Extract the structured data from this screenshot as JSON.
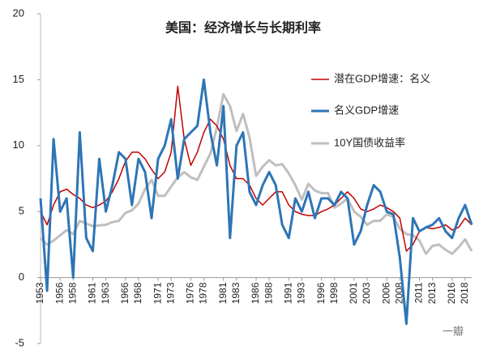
{
  "chart_data": {
    "type": "line",
    "title": "美国：经济增长与长期利率",
    "watermark": "一瓣",
    "x": [
      1953,
      1954,
      1955,
      1956,
      1957,
      1958,
      1959,
      1960,
      1961,
      1962,
      1963,
      1964,
      1965,
      1966,
      1967,
      1968,
      1969,
      1970,
      1971,
      1972,
      1973,
      1974,
      1975,
      1976,
      1977,
      1978,
      1979,
      1980,
      1981,
      1982,
      1983,
      1984,
      1985,
      1986,
      1987,
      1988,
      1989,
      1990,
      1991,
      1992,
      1993,
      1994,
      1995,
      1996,
      1997,
      1998,
      1999,
      2000,
      2001,
      2002,
      2003,
      2004,
      2005,
      2006,
      2007,
      2008,
      2009,
      2010,
      2011,
      2012,
      2013,
      2014,
      2015,
      2016,
      2017,
      2018,
      2019
    ],
    "series": [
      {
        "name": "潜在GDP增速：名义",
        "color": "#c00000",
        "width": 1.5,
        "values": [
          5,
          4,
          5.5,
          6.5,
          6.7,
          6.3,
          6,
          5.5,
          5.3,
          5.5,
          5.8,
          6.5,
          7.5,
          8.8,
          9.5,
          9.5,
          9,
          8.2,
          7.5,
          8,
          9.5,
          14.5,
          10.5,
          8.5,
          9.5,
          11,
          12,
          11.5,
          10.5,
          8.5,
          7.5,
          7.5,
          7,
          6,
          5.5,
          6,
          6.5,
          6.5,
          5.5,
          5,
          4.8,
          4.7,
          4.7,
          5,
          5.2,
          5.5,
          6,
          6.5,
          6,
          5.2,
          5,
          5.2,
          5.5,
          5.3,
          5,
          4.5,
          2,
          2.5,
          3.5,
          3.8,
          3.7,
          3.8,
          4,
          3.6,
          3.8,
          4.5,
          4
        ]
      },
      {
        "name": "名义GDP增速",
        "color": "#2e75b6",
        "width": 3,
        "values": [
          6,
          -1,
          10.5,
          5,
          6,
          0,
          11,
          3,
          2,
          9,
          5,
          7,
          9.5,
          9,
          5.5,
          9,
          8,
          4.5,
          9,
          10,
          12,
          7.5,
          10.5,
          11,
          11.5,
          15,
          11,
          8.5,
          13,
          3,
          10,
          11,
          6.5,
          5.5,
          7,
          8,
          7,
          4,
          3,
          6,
          5,
          6.5,
          4.5,
          6,
          6,
          5.5,
          6.5,
          6,
          2.5,
          3.5,
          5.5,
          7,
          6.5,
          5,
          4.8,
          1.5,
          -3.5,
          4.5,
          3.5,
          3.8,
          4,
          4.5,
          3.5,
          3,
          4.5,
          5.5,
          4
        ]
      },
      {
        "name": "10Y国债收益率",
        "color": "#bfbfbf",
        "width": 3,
        "values": [
          3,
          2.5,
          2.8,
          3.2,
          3.6,
          3.3,
          4.3,
          4.1,
          3.9,
          3.95,
          4,
          4.2,
          4.3,
          4.9,
          5.1,
          5.6,
          6.7,
          7.4,
          6.2,
          6.2,
          6.9,
          7.6,
          8,
          7.6,
          7.4,
          8.4,
          9.4,
          11.4,
          13.9,
          13,
          11.1,
          12.4,
          10.6,
          7.7,
          8.4,
          8.9,
          8.5,
          8.6,
          7.9,
          7,
          5.9,
          7.1,
          6.6,
          6.4,
          6.4,
          5.3,
          5.6,
          6,
          5,
          4.6,
          4,
          4.3,
          4.3,
          4.8,
          4.6,
          3.7,
          3.3,
          3.2,
          2.8,
          1.8,
          2.4,
          2.5,
          2.1,
          1.8,
          2.3,
          2.9,
          2
        ]
      }
    ],
    "xlim": [
      1953,
      2019
    ],
    "xticks": [
      1953,
      1956,
      1958,
      1961,
      1963,
      1966,
      1968,
      1971,
      1973,
      1976,
      1978,
      1981,
      1983,
      1986,
      1988,
      1991,
      1993,
      1996,
      1998,
      2001,
      2003,
      2006,
      2008,
      2011,
      2013,
      2016,
      2018
    ],
    "ylim": [
      -5,
      20
    ],
    "yticks": [
      -5,
      0,
      5,
      10,
      15,
      20
    ],
    "legend": "right"
  }
}
